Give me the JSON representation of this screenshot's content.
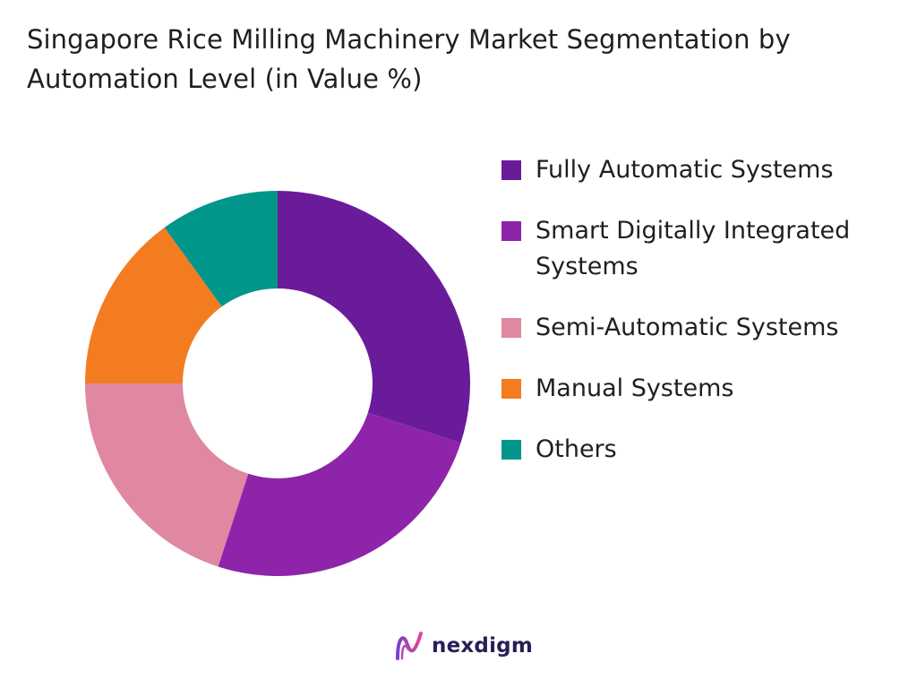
{
  "chart_data": {
    "type": "pie",
    "donut": true,
    "title": "Singapore Rice Milling Machinery Market Segmentation by Automation Level (in Value %)",
    "categories": [
      "Fully Automatic Systems",
      "Smart Digitally Integrated Systems",
      "Semi-Automatic Systems",
      "Manual Systems",
      "Others"
    ],
    "values": [
      30,
      25,
      20,
      15,
      10
    ],
    "colors": [
      "#6a1b9a",
      "#8e24aa",
      "#e088a1",
      "#f47c20",
      "#00968a"
    ],
    "legend_position": "right"
  },
  "brand": {
    "name": "nexdigm"
  }
}
